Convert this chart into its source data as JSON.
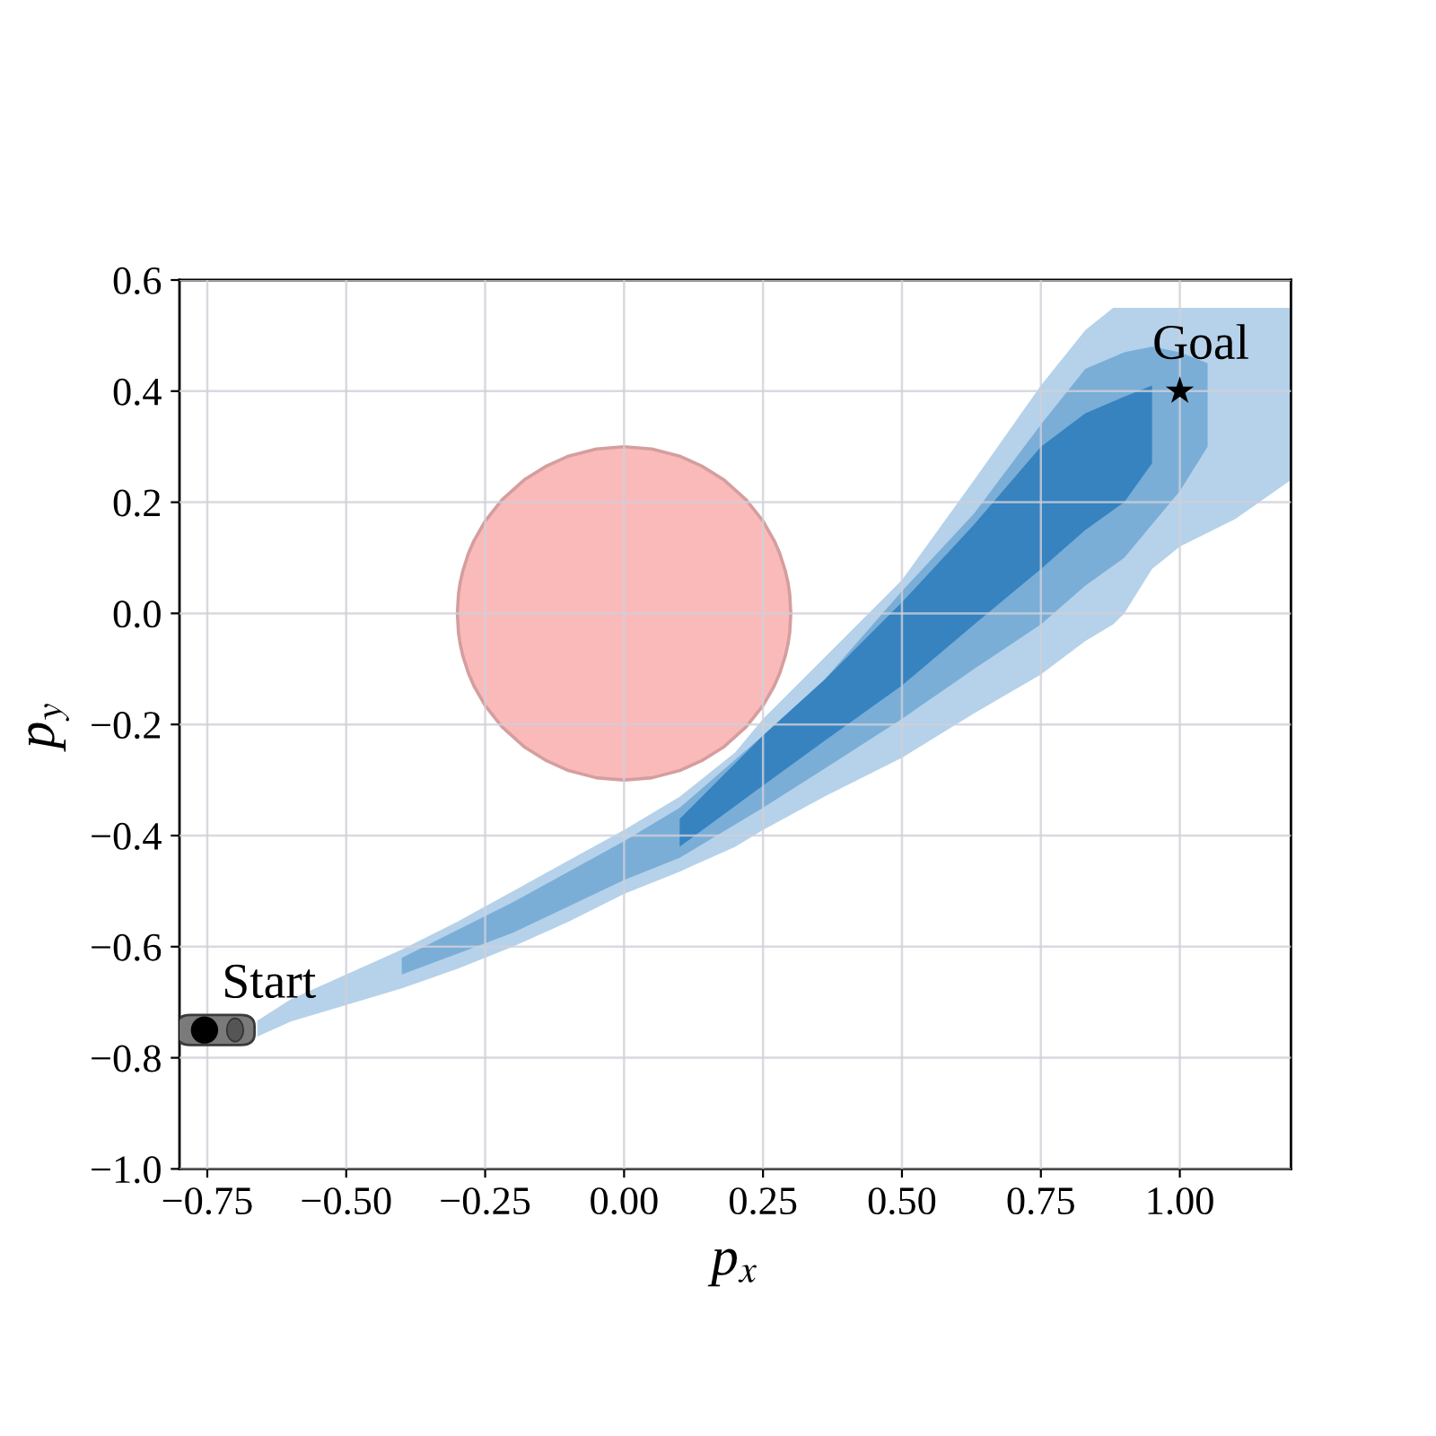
{
  "chart_data": {
    "type": "scatter",
    "xlabel": "p$_{x}$",
    "ylabel": "p$_{y}$",
    "xlim": [
      -0.8,
      1.2
    ],
    "ylim": [
      -1.0,
      0.6
    ],
    "xticks": [
      {
        "value": -0.75,
        "label": "−0.75"
      },
      {
        "value": -0.5,
        "label": "−0.50"
      },
      {
        "value": -0.25,
        "label": "−0.25"
      },
      {
        "value": 0,
        "label": "0.00"
      },
      0.25,
      {
        "value": 0.5,
        "label": "0.50"
      },
      0.75,
      {
        "value": 1.0,
        "label": "1.00"
      }
    ],
    "yticks": [
      {
        "value": -1.0,
        "label": "−1.0"
      },
      {
        "value": -0.8,
        "label": "−0.8"
      },
      {
        "value": -0.6,
        "label": "−0.6"
      },
      {
        "value": -0.4,
        "label": "−0.4"
      },
      {
        "value": -0.2,
        "label": "−0.2"
      },
      {
        "value": 0,
        "label": "0.0"
      },
      0.2,
      0.4,
      0.6
    ],
    "grid": true,
    "series": [
      {
        "type": "line",
        "color": "#fbbaba",
        "line_style": "solid",
        "x": [
          -0.3,
          -0.298,
          -0.295,
          -0.29,
          -0.28,
          -0.27,
          -0.25,
          -0.22,
          -0.18,
          -0.14,
          -0.1,
          -0.05,
          0,
          0.05,
          0.1,
          0.14,
          0.18,
          0.22,
          0.25,
          0.27,
          0.28,
          0.29,
          0.295,
          0.298,
          0.3
        ],
        "values": [
          null,
          null,
          null,
          null,
          null,
          null,
          null,
          null,
          null,
          null,
          null,
          null,
          null,
          null,
          null,
          null,
          null,
          null,
          null,
          null,
          null,
          null,
          null,
          null,
          null
        ],
        "lower": [
          0,
          -0.035,
          -0.055,
          -0.077,
          -0.108,
          -0.131,
          -0.166,
          -0.204,
          -0.24,
          -0.265,
          -0.283,
          -0.296,
          -0.3,
          -0.296,
          -0.283,
          -0.265,
          -0.24,
          -0.204,
          -0.166,
          -0.131,
          -0.108,
          -0.077,
          -0.055,
          -0.035,
          0
        ],
        "upper": [
          0,
          0.035,
          0.055,
          0.077,
          0.108,
          0.131,
          0.166,
          0.204,
          0.24,
          0.265,
          0.283,
          0.296,
          0.3,
          0.296,
          0.283,
          0.265,
          0.24,
          0.204,
          0.166,
          0.131,
          0.108,
          0.077,
          0.055,
          0.035,
          0
        ]
      },
      {
        "type": "line",
        "color": "#b5d2ea",
        "x": [
          -0.66,
          -0.6,
          -0.5,
          -0.4,
          -0.3,
          -0.2,
          -0.1,
          0,
          0.1,
          0.2,
          0.25,
          0.36,
          0.5,
          0.63,
          0.75,
          0.83,
          0.88,
          0.9,
          0.95,
          1.0,
          1.1,
          1.2
        ],
        "values": [
          null,
          null,
          null,
          null,
          null,
          null,
          null,
          null,
          null,
          null,
          null,
          null,
          null,
          null,
          null,
          null,
          null,
          null,
          null,
          null,
          null,
          null
        ],
        "lower": [
          -0.762,
          -0.735,
          -0.705,
          -0.675,
          -0.64,
          -0.6,
          -0.555,
          -0.505,
          -0.465,
          -0.42,
          -0.39,
          -0.33,
          -0.26,
          -0.18,
          -0.11,
          -0.05,
          -0.02,
          0.0,
          0.08,
          0.12,
          0.17,
          0.24
        ],
        "upper": [
          -0.733,
          -0.695,
          -0.65,
          -0.605,
          -0.555,
          -0.5,
          -0.445,
          -0.39,
          -0.33,
          -0.25,
          -0.19,
          -0.08,
          0.06,
          0.24,
          0.41,
          0.51,
          0.55,
          0.55,
          0.55,
          0.55,
          0.55,
          0.55
        ]
      },
      {
        "type": "line",
        "color": "#7aaed7",
        "x": [
          -0.4,
          -0.2,
          0,
          0.1,
          0.25,
          0.36,
          0.5,
          0.63,
          0.75,
          0.83,
          0.9,
          0.95,
          1.0,
          1.05
        ],
        "values": [
          null,
          null,
          null,
          null,
          null,
          null,
          null,
          null,
          null,
          null,
          null,
          null,
          null,
          null
        ],
        "lower": [
          -0.65,
          -0.575,
          -0.48,
          -0.44,
          -0.35,
          -0.28,
          -0.19,
          -0.1,
          -0.02,
          0.05,
          0.1,
          0.16,
          0.22,
          0.3
        ],
        "upper": [
          -0.62,
          -0.52,
          -0.41,
          -0.35,
          -0.22,
          -0.12,
          0.04,
          0.18,
          0.34,
          0.44,
          0.47,
          0.48,
          0.47,
          0.45
        ]
      },
      {
        "type": "line",
        "color": "#3683c0",
        "x": [
          0.1,
          0.25,
          0.36,
          0.5,
          0.63,
          0.75,
          0.83,
          0.9,
          0.95
        ],
        "values": [
          null,
          null,
          null,
          null,
          null,
          null,
          null,
          null,
          null
        ],
        "lower": [
          -0.42,
          -0.31,
          -0.23,
          -0.13,
          -0.02,
          0.08,
          0.15,
          0.2,
          0.27
        ],
        "upper": [
          -0.37,
          -0.22,
          -0.12,
          0.02,
          0.16,
          0.3,
          0.36,
          0.39,
          0.41
        ]
      },
      {
        "color": "#000000",
        "marker": "circle",
        "x": [
          -0.755
        ],
        "values": [
          -0.75
        ]
      },
      {
        "color": "#000000",
        "marker": "star",
        "x": [
          1.0
        ],
        "values": [
          0.4
        ]
      }
    ],
    "annotations": [
      {
        "text": "Start",
        "x": -0.755,
        "y": -0.75
      },
      {
        "text": "Goal",
        "x": 1.0,
        "y": 0.4
      }
    ]
  }
}
